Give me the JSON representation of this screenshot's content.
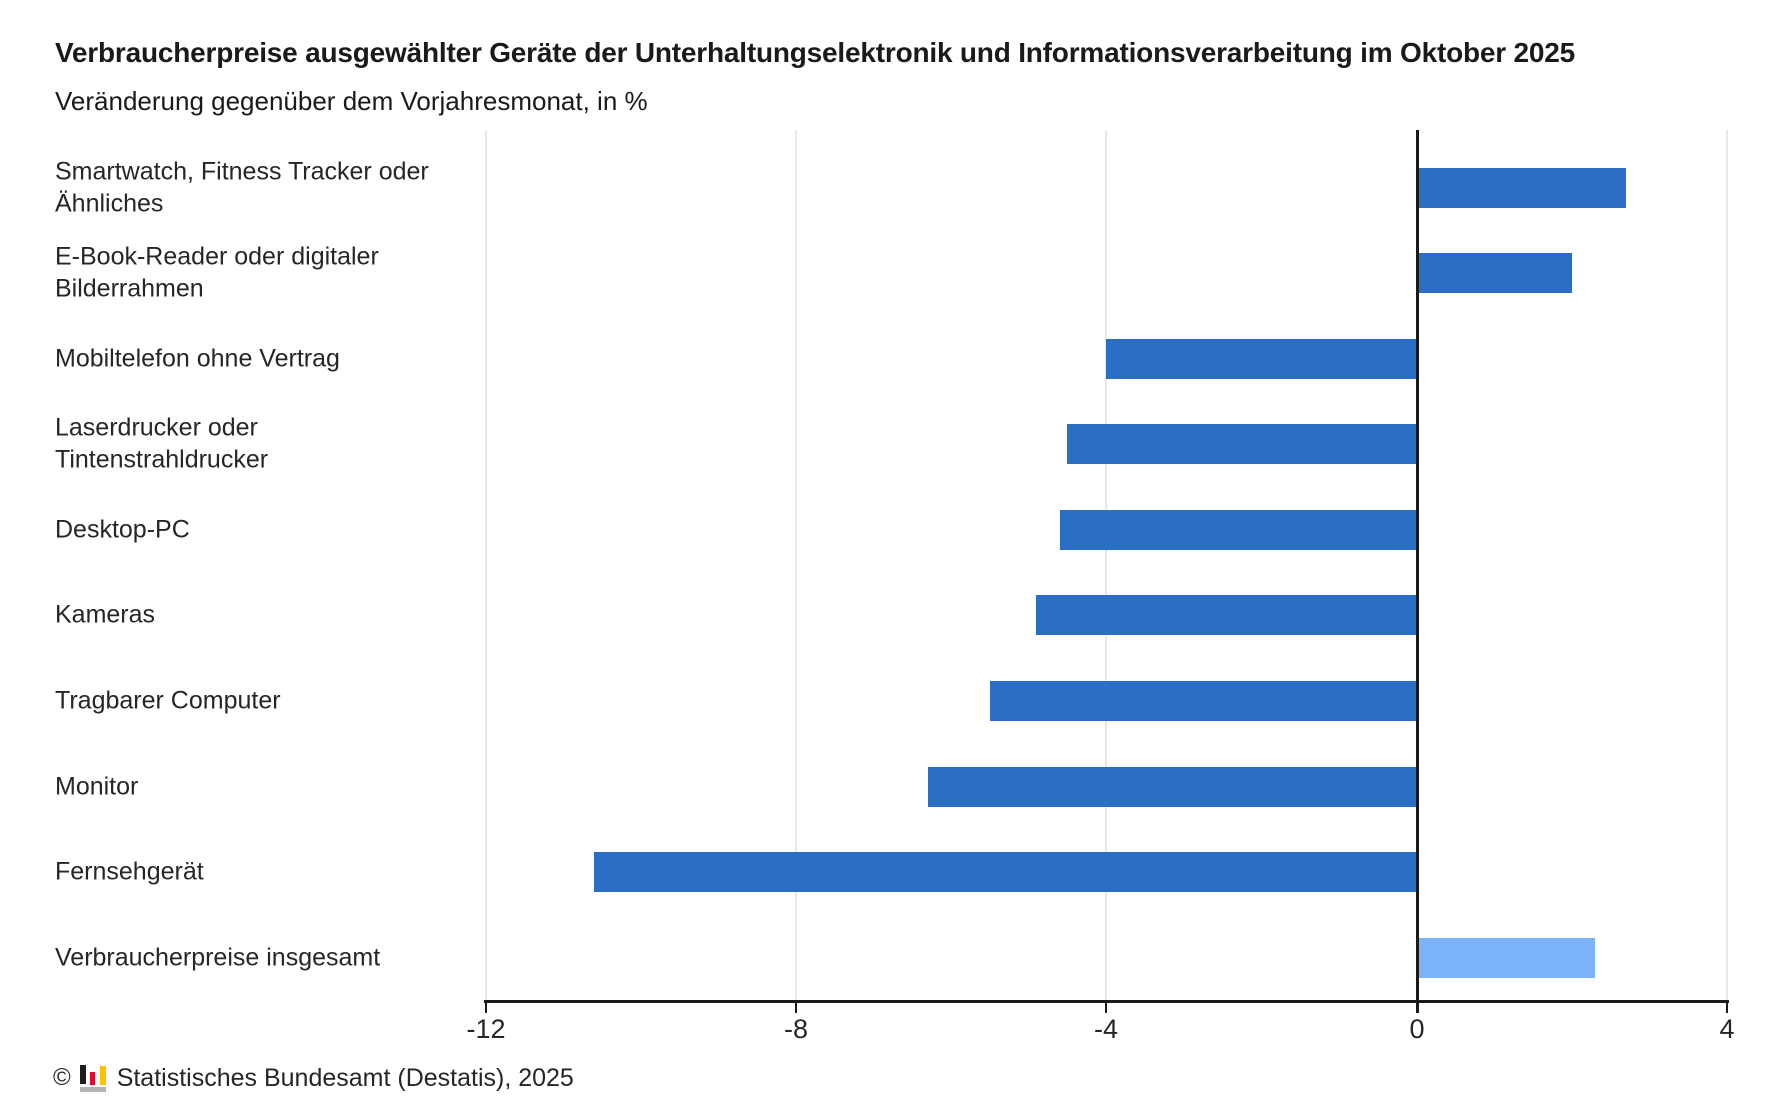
{
  "chart_data": {
    "type": "bar",
    "orientation": "horizontal",
    "title": "Verbraucherpreise ausgewählter Geräte der Unterhaltungselektronik und Informationsverarbeitung im Oktober 2025",
    "subtitle": "Veränderung gegenüber dem Vorjahresmonat, in %",
    "unit": "%",
    "categories": [
      "Smartwatch, Fitness Tracker oder\nÄhnliches",
      "E-Book-Reader oder digitaler\nBilderrahmen",
      "Mobiltelefon ohne Vertrag",
      "Laserdrucker oder\nTintenstrahldrucker",
      "Desktop-PC",
      "Kameras",
      "Tragbarer Computer",
      "Monitor",
      "Fernsehgerät",
      "Verbraucherpreise insgesamt"
    ],
    "values": [
      2.7,
      2.0,
      -4.0,
      -4.5,
      -4.6,
      -4.9,
      -5.5,
      -6.3,
      -10.6,
      2.3
    ],
    "xlim": [
      -12,
      4
    ],
    "xticks": [
      -12,
      -8,
      -4,
      0,
      4
    ],
    "grid": true,
    "legend_position": "none",
    "bar_color": "#2a6fc5",
    "highlight_color": "#7cb3f8",
    "highlight_index": 9,
    "gridline_color": "#e8e8e8",
    "axis_color": "#1a1a1a"
  },
  "footer": {
    "copyright": "©",
    "source": "Statistisches Bundesamt (Destatis), 2025",
    "logo_icon": "destatis-bar-chart-logo",
    "logo_colors": {
      "bar_black": "#1d1d1b",
      "bar_red": "#e30b2c",
      "bar_gold": "#fdc300",
      "base_gray": "#b5b5b5"
    }
  }
}
